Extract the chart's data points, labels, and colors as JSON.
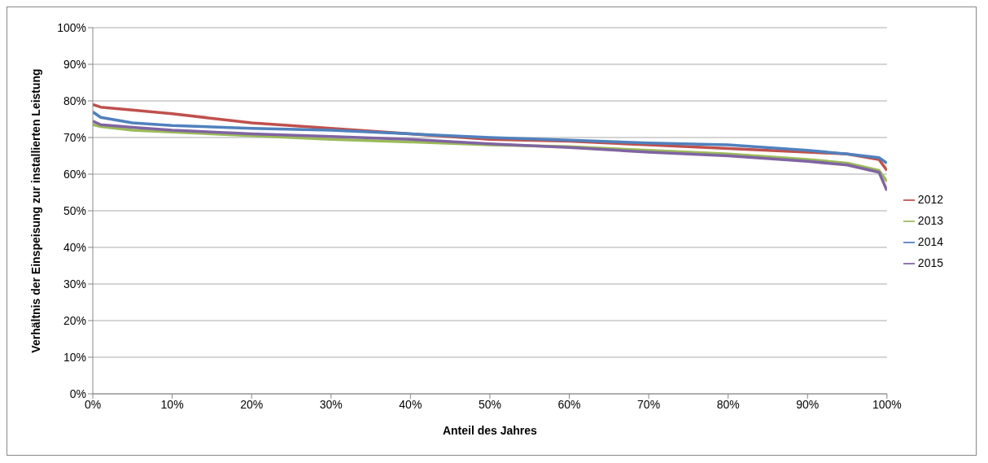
{
  "chart_data": {
    "type": "line",
    "xlabel": "Anteil des Jahres",
    "ylabel": "Verhältnis der Einspeisung  zur installierten Leistung",
    "x": [
      0,
      1,
      5,
      10,
      20,
      30,
      40,
      50,
      60,
      70,
      80,
      90,
      95,
      99,
      100
    ],
    "series": [
      {
        "name": "2012",
        "color": "#c0504d",
        "values": [
          79,
          78.3,
          77.5,
          76.5,
          74,
          72.5,
          71,
          69.5,
          69,
          68,
          67,
          66,
          65.5,
          64,
          61
        ]
      },
      {
        "name": "2013",
        "color": "#9bbb59",
        "values": [
          73.5,
          73,
          72,
          71.5,
          70.5,
          69.5,
          68.8,
          68,
          67.5,
          66.5,
          65.5,
          64,
          63,
          61,
          58
        ]
      },
      {
        "name": "2014",
        "color": "#4f81bd",
        "values": [
          77,
          75.5,
          74,
          73.3,
          72.5,
          72,
          71,
          70,
          69.3,
          68.5,
          68,
          66.5,
          65.5,
          64.5,
          63
        ]
      },
      {
        "name": "2015",
        "color": "#8064a2",
        "values": [
          74.5,
          73.5,
          72.8,
          72,
          71,
          70.3,
          69.5,
          68.3,
          67.3,
          66,
          65,
          63.5,
          62.5,
          60.5,
          55.5
        ]
      }
    ],
    "xlim": [
      0,
      100
    ],
    "ylim": [
      0,
      100
    ],
    "xticks": [
      {
        "value": 0,
        "label": "0%"
      },
      {
        "value": 10,
        "label": "10%"
      },
      {
        "value": 20,
        "label": "20%"
      },
      {
        "value": 30,
        "label": "30%"
      },
      {
        "value": 40,
        "label": "40%"
      },
      {
        "value": 50,
        "label": "50%"
      },
      {
        "value": 60,
        "label": "60%"
      },
      {
        "value": 70,
        "label": "70%"
      },
      {
        "value": 80,
        "label": "80%"
      },
      {
        "value": 90,
        "label": "90%"
      },
      {
        "value": 100,
        "label": "100%"
      }
    ],
    "yticks": [
      {
        "value": 0,
        "label": "0%"
      },
      {
        "value": 10,
        "label": "10%"
      },
      {
        "value": 20,
        "label": "20%"
      },
      {
        "value": 30,
        "label": "30%"
      },
      {
        "value": 40,
        "label": "40%"
      },
      {
        "value": 50,
        "label": "50%"
      },
      {
        "value": 60,
        "label": "60%"
      },
      {
        "value": 70,
        "label": "70%"
      },
      {
        "value": 80,
        "label": "80%"
      },
      {
        "value": 90,
        "label": "90%"
      },
      {
        "value": 100,
        "label": "100%"
      }
    ],
    "grid": "y",
    "legend": "right",
    "marker": "none",
    "line_style": "solid"
  }
}
